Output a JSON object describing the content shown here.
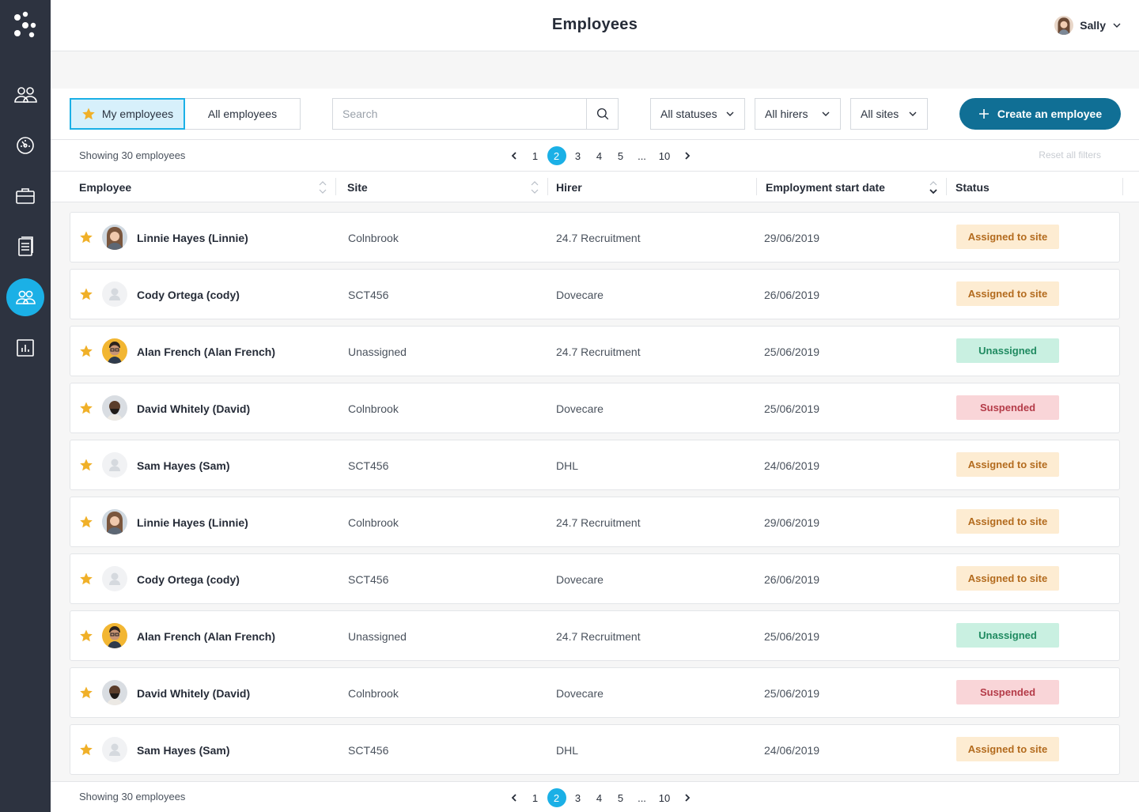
{
  "header": {
    "title": "Employees",
    "user_name": "Sally"
  },
  "sidebar": {
    "items": [
      {
        "name": "team-icon"
      },
      {
        "name": "dashboard-icon"
      },
      {
        "name": "briefcase-icon"
      },
      {
        "name": "documents-icon"
      },
      {
        "name": "employees-icon",
        "active": true
      },
      {
        "name": "reports-icon"
      }
    ]
  },
  "toolbar": {
    "my_employees": "My employees",
    "all_employees": "All employees",
    "search_placeholder": "Search",
    "status_filter": "All statuses",
    "hirer_filter": "All hirers",
    "site_filter": "All sites",
    "create_label": "Create an employee"
  },
  "info": {
    "showing": "Showing 30 employees",
    "reset": "Reset all filters",
    "pages": [
      "1",
      "2",
      "3",
      "4",
      "5",
      "...",
      "10"
    ],
    "current_page": "2"
  },
  "columns": {
    "employee": "Employee",
    "site": "Site",
    "hirer": "Hirer",
    "start_date": "Employment start date",
    "status": "Status"
  },
  "colors": {
    "accent": "#1bb0e6",
    "primary_button": "#106f95",
    "sidebar": "#2d3340",
    "star": "#f0b028",
    "assigned_bg": "#fdecd2",
    "unassigned_bg": "#c9f0e1",
    "suspended_bg": "#f9d5d8"
  },
  "rows": [
    {
      "name": "Linnie Hayes (Linnie)",
      "site": "Colnbrook",
      "hirer": "24.7 Recruitment",
      "date": "29/06/2019",
      "status": "Assigned to site",
      "status_type": "assigned",
      "avatar": "woman"
    },
    {
      "name": "Cody Ortega (cody)",
      "site": "SCT456",
      "hirer": "Dovecare",
      "date": "26/06/2019",
      "status": "Assigned to site",
      "status_type": "assigned",
      "avatar": "placeholder"
    },
    {
      "name": "Alan French (Alan French)",
      "site": "Unassigned",
      "hirer": "24.7 Recruitment",
      "date": "25/06/2019",
      "status": "Unassigned",
      "status_type": "unassigned",
      "avatar": "man-glasses"
    },
    {
      "name": "David Whitely (David)",
      "site": "Colnbrook",
      "hirer": "Dovecare",
      "date": "25/06/2019",
      "status": "Suspended",
      "status_type": "suspended",
      "avatar": "man-beard"
    },
    {
      "name": "Sam Hayes (Sam)",
      "site": "SCT456",
      "hirer": "DHL",
      "date": "24/06/2019",
      "status": "Assigned to site",
      "status_type": "assigned",
      "avatar": "placeholder"
    },
    {
      "name": "Linnie Hayes (Linnie)",
      "site": "Colnbrook",
      "hirer": "24.7 Recruitment",
      "date": "29/06/2019",
      "status": "Assigned to site",
      "status_type": "assigned",
      "avatar": "woman"
    },
    {
      "name": "Cody Ortega (cody)",
      "site": "SCT456",
      "hirer": "Dovecare",
      "date": "26/06/2019",
      "status": "Assigned to site",
      "status_type": "assigned",
      "avatar": "placeholder"
    },
    {
      "name": "Alan French (Alan French)",
      "site": "Unassigned",
      "hirer": "24.7 Recruitment",
      "date": "25/06/2019",
      "status": "Unassigned",
      "status_type": "unassigned",
      "avatar": "man-glasses"
    },
    {
      "name": "David Whitely (David)",
      "site": "Colnbrook",
      "hirer": "Dovecare",
      "date": "25/06/2019",
      "status": "Suspended",
      "status_type": "suspended",
      "avatar": "man-beard"
    },
    {
      "name": "Sam Hayes (Sam)",
      "site": "SCT456",
      "hirer": "DHL",
      "date": "24/06/2019",
      "status": "Assigned to site",
      "status_type": "assigned",
      "avatar": "placeholder"
    }
  ]
}
